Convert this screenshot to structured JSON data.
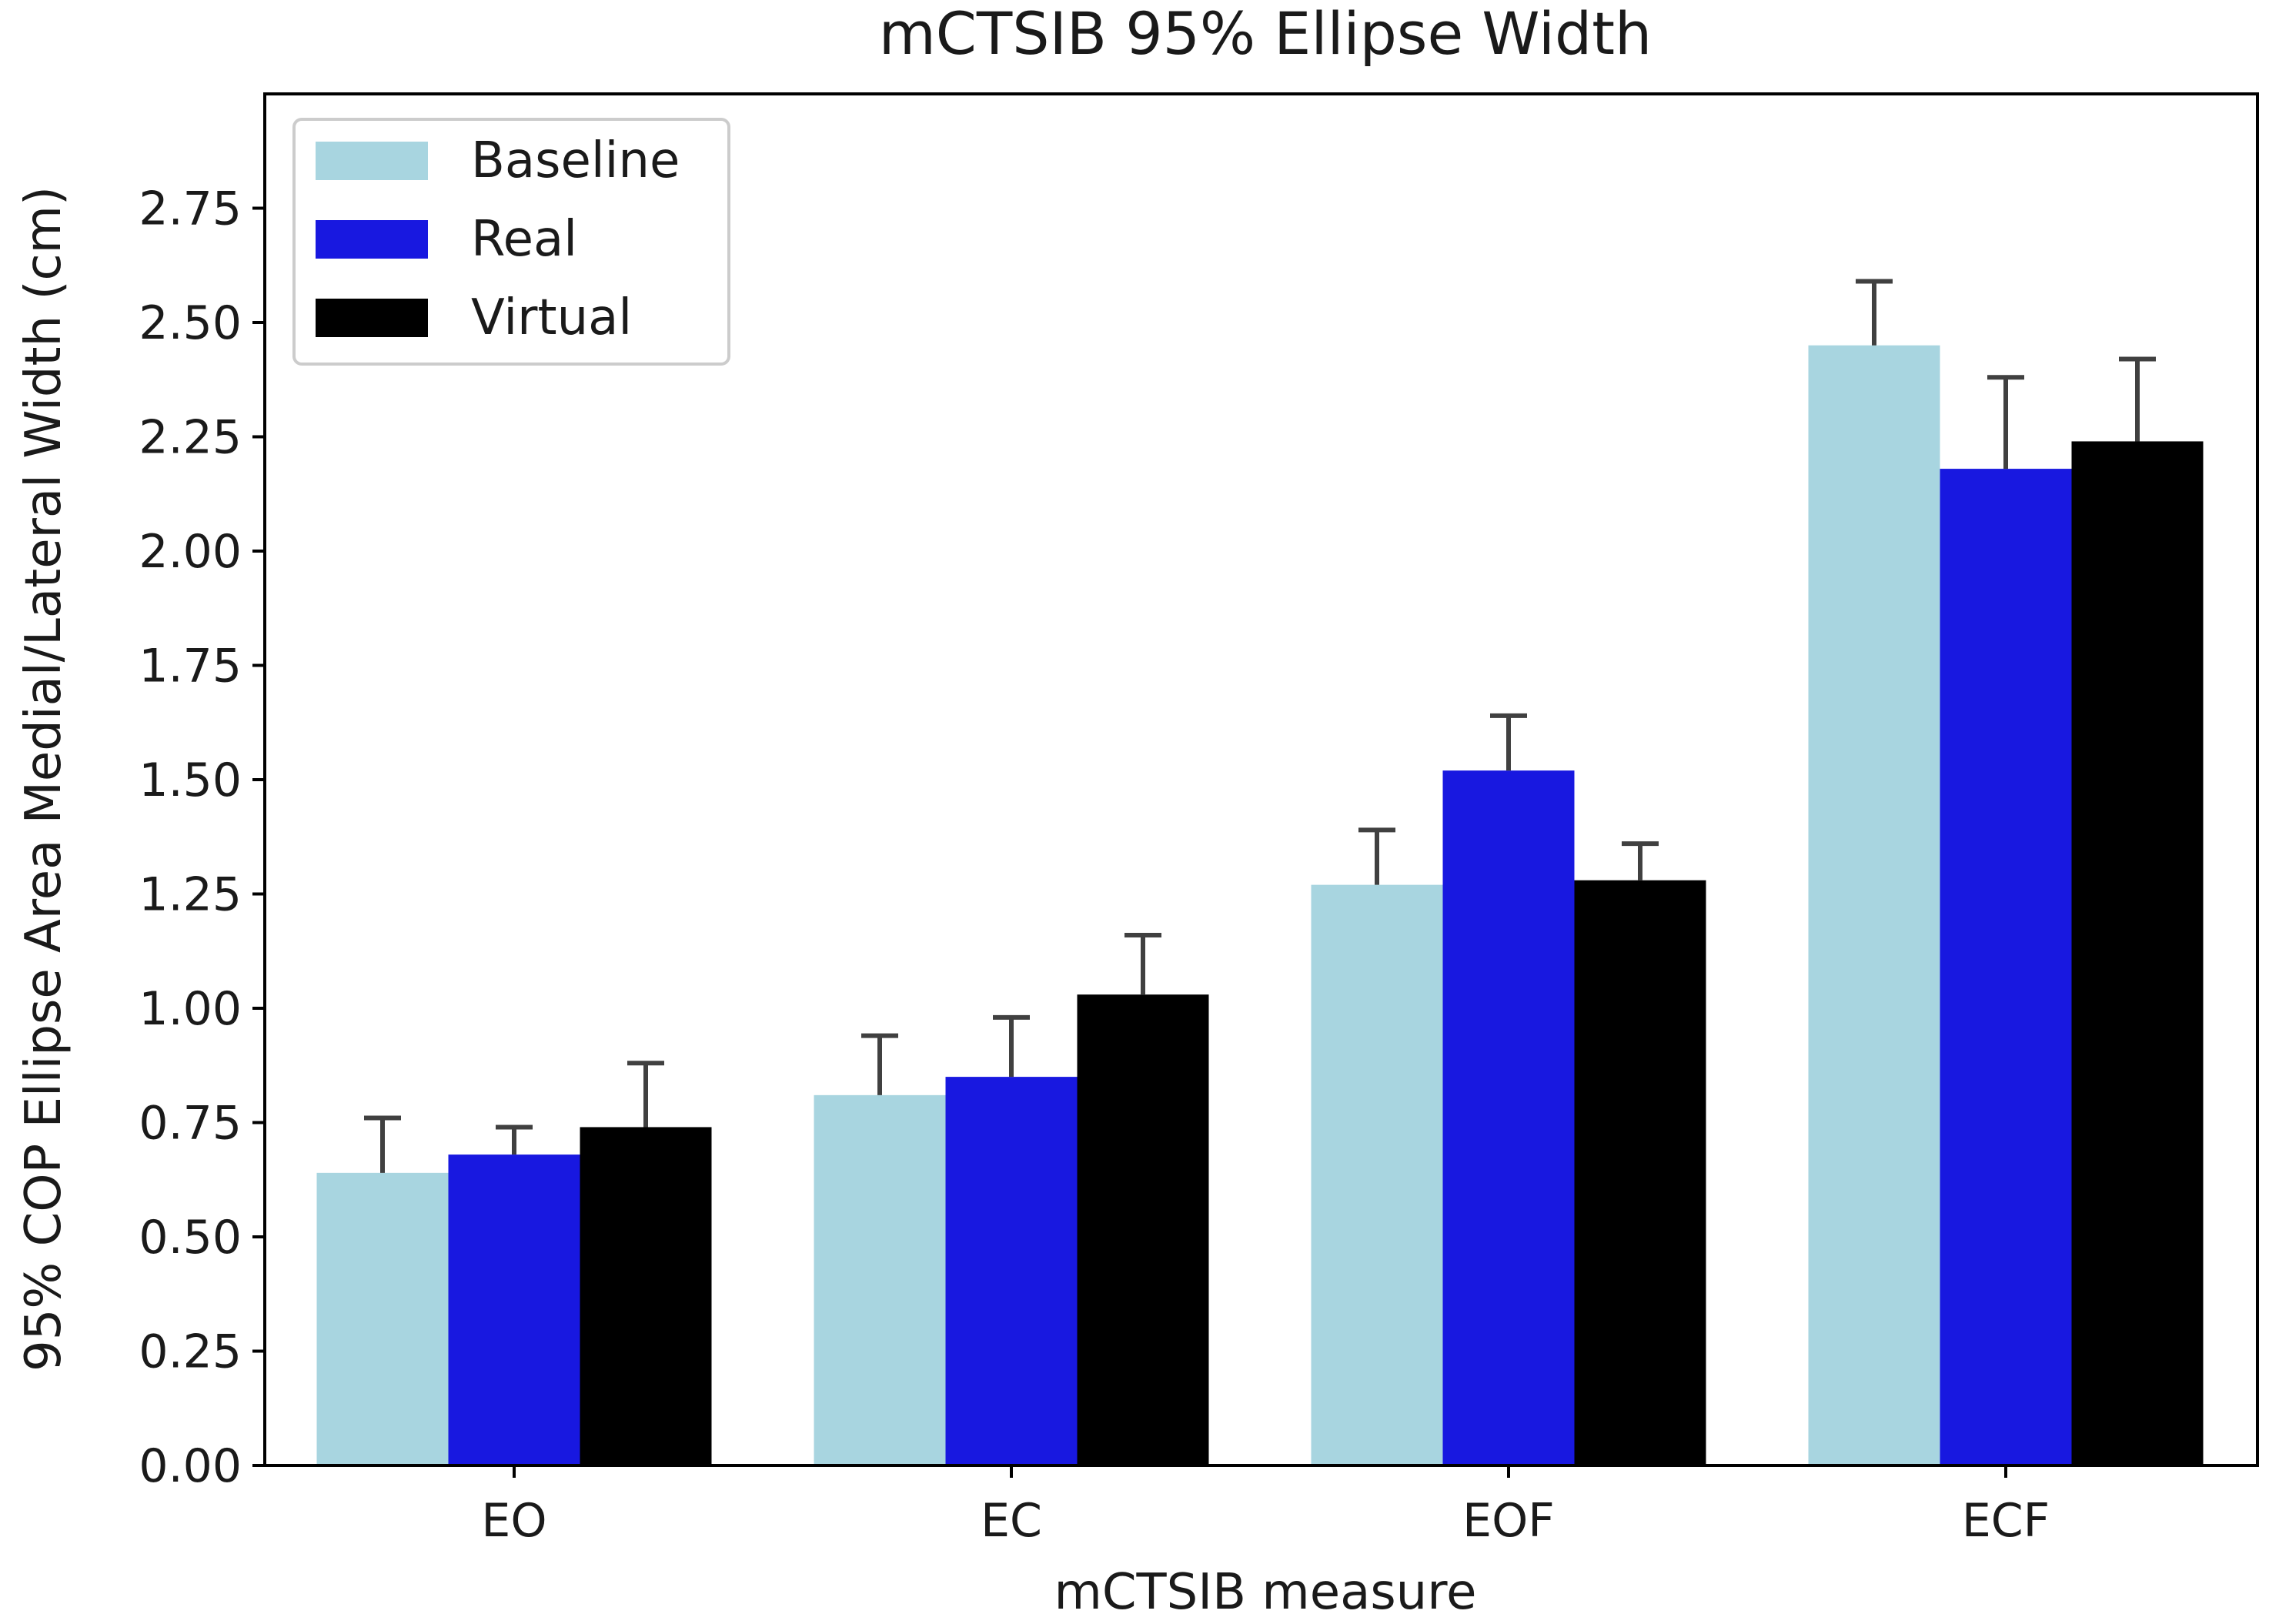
{
  "chart_data": {
    "type": "bar",
    "title": "mCTSIB 95% Ellipse Width",
    "xlabel": "mCTSIB measure",
    "ylabel": "95% COP Ellipse Area Medial/Lateral Width (cm)",
    "categories": [
      "EO",
      "EC",
      "EOF",
      "ECF"
    ],
    "ylim": [
      0,
      3.0
    ],
    "yticks": [
      "0.00",
      "0.25",
      "0.50",
      "0.75",
      "1.00",
      "1.25",
      "1.50",
      "1.75",
      "2.00",
      "2.25",
      "2.50",
      "2.75"
    ],
    "legend_position": "upper-left",
    "grid": false,
    "series": [
      {
        "name": "Baseline",
        "color": "#a8d5e0",
        "values": [
          0.64,
          0.81,
          1.27,
          2.45
        ],
        "errors": [
          0.12,
          0.13,
          0.12,
          0.14
        ]
      },
      {
        "name": "Real",
        "color": "#1818e0",
        "values": [
          0.68,
          0.85,
          1.52,
          2.18
        ],
        "errors": [
          0.06,
          0.13,
          0.12,
          0.2
        ]
      },
      {
        "name": "Virtual",
        "color": "#000000",
        "values": [
          0.74,
          1.03,
          1.28,
          2.24
        ],
        "errors": [
          0.14,
          0.13,
          0.08,
          0.18
        ]
      }
    ]
  }
}
